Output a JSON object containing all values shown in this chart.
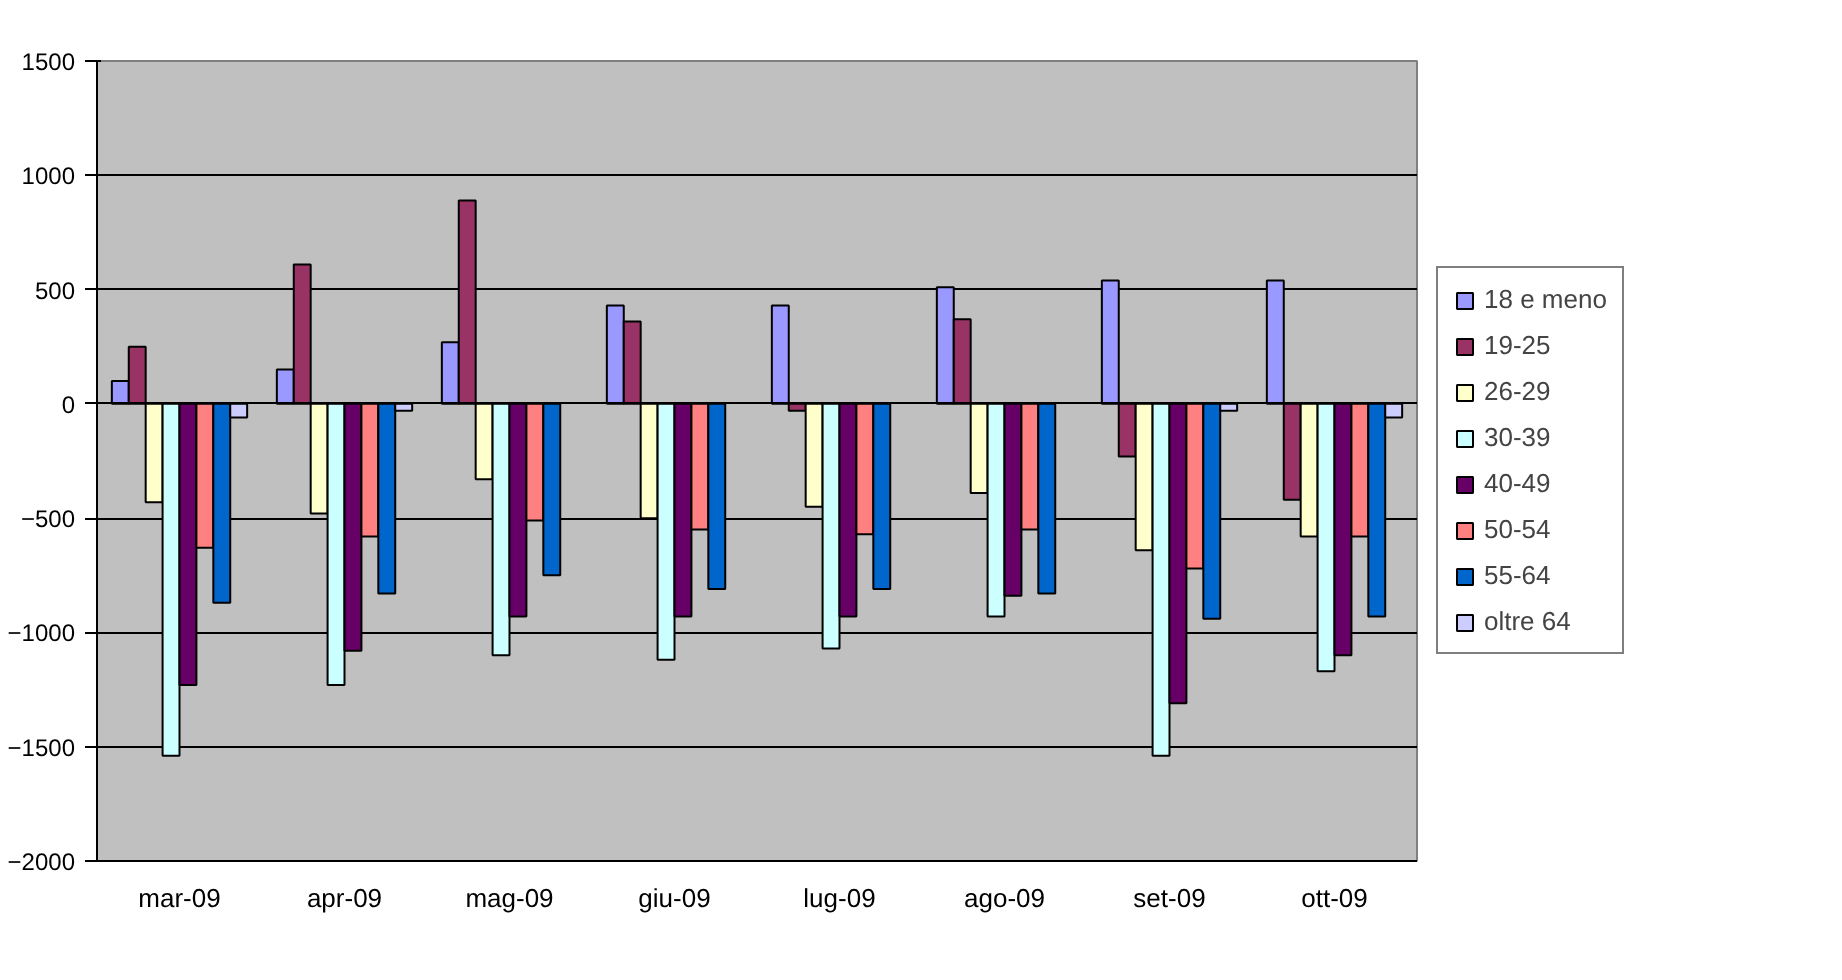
{
  "chart_data": {
    "type": "bar",
    "categories": [
      "mar-09",
      "apr-09",
      "mag-09",
      "giu-09",
      "lug-09",
      "ago-09",
      "set-09",
      "ott-09"
    ],
    "ylim": [
      -2000,
      1500
    ],
    "yticks": [
      -2000,
      -1500,
      -1000,
      -500,
      0,
      500,
      1000,
      1500
    ],
    "grid": "y",
    "legend": "right",
    "series": [
      {
        "name": "18 e meno",
        "color": "#9999ff",
        "values": [
          100,
          150,
          270,
          430,
          430,
          510,
          540,
          540
        ]
      },
      {
        "name": "19-25",
        "color": "#993366",
        "values": [
          250,
          610,
          890,
          360,
          -30,
          370,
          -230,
          -420
        ]
      },
      {
        "name": "26-29",
        "color": "#ffffcc",
        "values": [
          -430,
          -480,
          -330,
          -500,
          -450,
          -390,
          -640,
          -580
        ]
      },
      {
        "name": "30-39",
        "color": "#ccffff",
        "values": [
          -1540,
          -1230,
          -1100,
          -1120,
          -1070,
          -930,
          -1540,
          -1170
        ]
      },
      {
        "name": "40-49",
        "color": "#660066",
        "values": [
          -1230,
          -1080,
          -930,
          -930,
          -930,
          -840,
          -1310,
          -1100
        ]
      },
      {
        "name": "50-54",
        "color": "#ff8080",
        "values": [
          -630,
          -580,
          -510,
          -550,
          -570,
          -550,
          -720,
          -580
        ]
      },
      {
        "name": "55-64",
        "color": "#0066cc",
        "values": [
          -870,
          -830,
          -750,
          -810,
          -810,
          -830,
          -940,
          -930
        ]
      },
      {
        "name": "oltre 64",
        "color": "#ccccff",
        "values": [
          -60,
          -30,
          null,
          null,
          null,
          null,
          -30,
          -60
        ]
      }
    ]
  }
}
